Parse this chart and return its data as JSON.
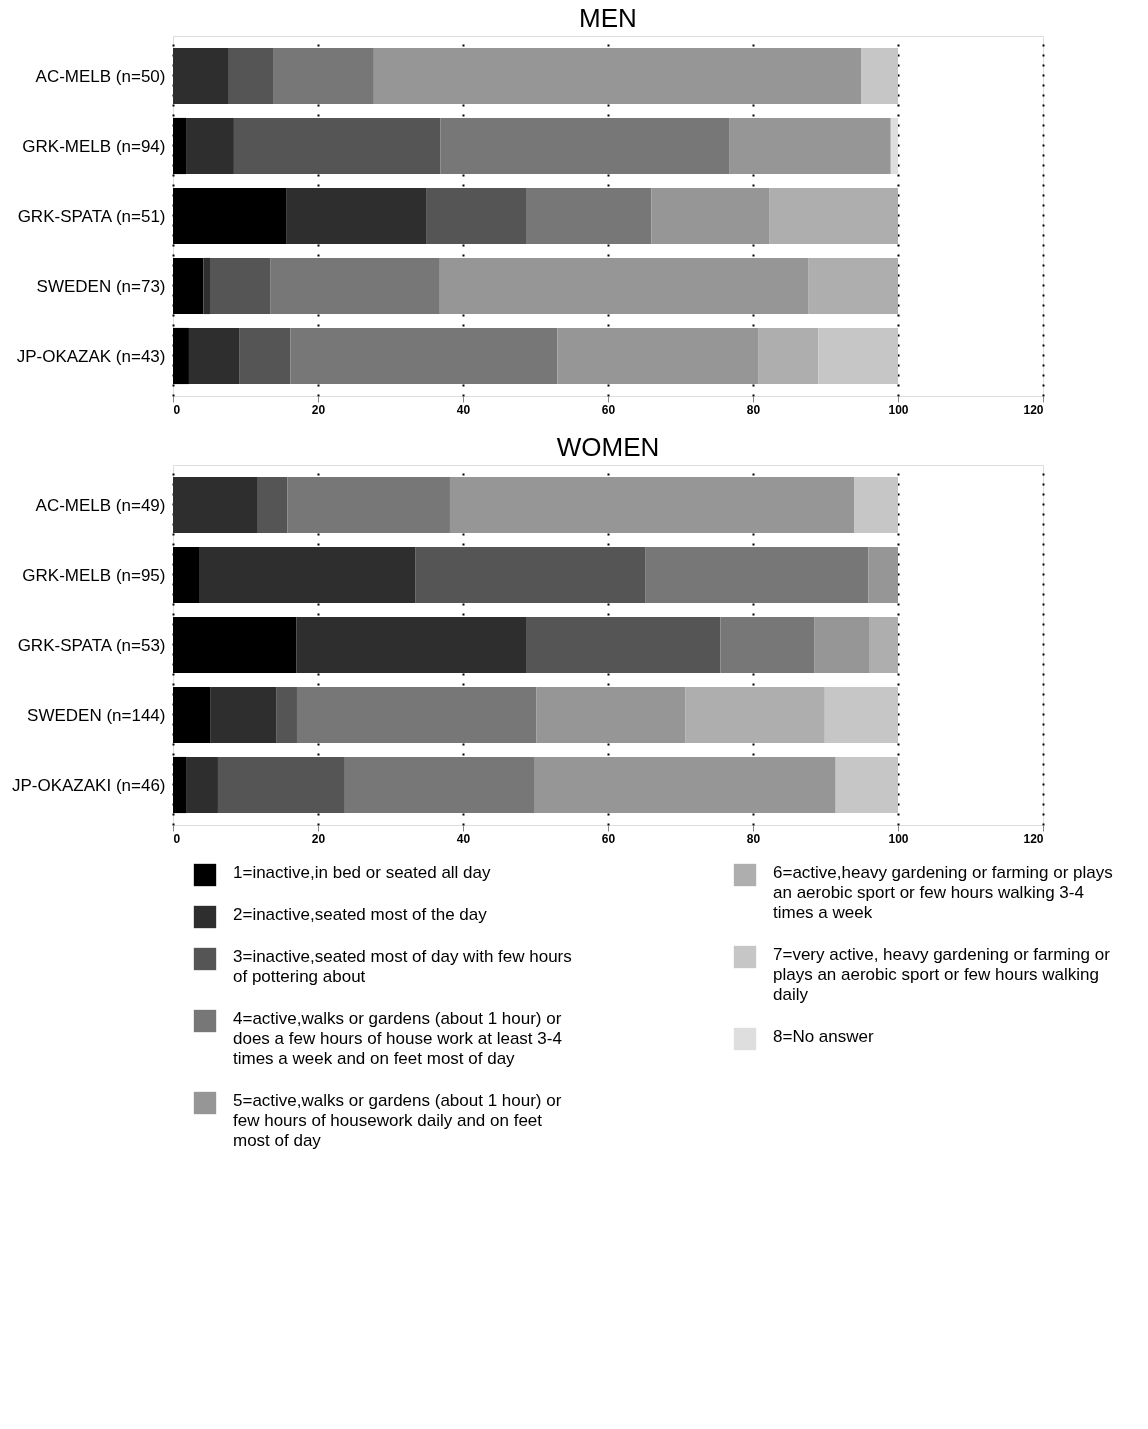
{
  "chart_data": [
    {
      "type": "bar",
      "title": "MEN",
      "orientation": "horizontal",
      "stacked": true,
      "xlim": [
        0,
        120
      ],
      "xticks": [
        0,
        20,
        40,
        60,
        80,
        100,
        120
      ],
      "grid": "x",
      "legend": false,
      "categories": [
        "AC-MELB (n=50)",
        "GRK-MELB (n=94)",
        "GRK-SPATA (n=51)",
        "SWEDEN (n=73)",
        "JP-OKAZAK (n=43)"
      ],
      "series": [
        {
          "color": "#000000",
          "values": [
            0,
            1.8,
            15.6,
            4.2,
            2.2
          ]
        },
        {
          "color": "#2e2e2e",
          "values": [
            7.7,
            6.6,
            19.4,
            0.9,
            7.0
          ]
        },
        {
          "color": "#555555",
          "values": [
            6.2,
            28.5,
            13.8,
            8.3,
            7.0
          ]
        },
        {
          "color": "#777777",
          "values": [
            13.8,
            39.8,
            17.2,
            23.4,
            36.8
          ]
        },
        {
          "color": "#969696",
          "values": [
            67.2,
            22.3,
            16.3,
            50.8,
            27.7
          ]
        },
        {
          "color": "#aeaeae",
          "values": [
            0,
            0,
            17.7,
            12.4,
            8.3
          ]
        },
        {
          "color": "#c6c6c6",
          "values": [
            5.1,
            0,
            0,
            0,
            11.0
          ]
        },
        {
          "color": "#dedede",
          "values": [
            0,
            1.0,
            0,
            0,
            0
          ]
        }
      ]
    },
    {
      "type": "bar",
      "title": "WOMEN",
      "orientation": "horizontal",
      "stacked": true,
      "xlim": [
        0,
        120
      ],
      "xticks": [
        0,
        20,
        40,
        60,
        80,
        100,
        120
      ],
      "grid": "x",
      "legend": "bottom",
      "categories": [
        "AC-MELB (n=49)",
        "GRK-MELB (n=95)",
        "GRK-SPATA (n=53)",
        "SWEDEN (n=144)",
        "JP-OKAZAKI (n=46)"
      ],
      "series": [
        {
          "name": "1=inactive,in bed or seated all day",
          "color": "#000000",
          "values": [
            0,
            3.7,
            17.0,
            5.2,
            1.9
          ]
        },
        {
          "name": "2=inactive,seated most of the day",
          "color": "#2e2e2e",
          "values": [
            11.7,
            29.7,
            31.8,
            9.1,
            4.3
          ]
        },
        {
          "name": "3=inactive,seated most of day with few hours of pottering about",
          "color": "#555555",
          "values": [
            4.1,
            31.8,
            26.7,
            2.8,
            17.5
          ]
        },
        {
          "name": "4=active,walks or gardens (about 1 hour) or does a few hours of house work at least 3-4 times a week and on feet most of day",
          "color": "#777777",
          "values": [
            22.4,
            30.7,
            13.0,
            33.0,
            26.2
          ]
        },
        {
          "name": "5=active,walks or gardens (about 1 hour) or few hours of housework daily and on feet most of day",
          "color": "#969696",
          "values": [
            55.8,
            4.1,
            7.5,
            20.6,
            41.5
          ]
        },
        {
          "name": "6=active,heavy gardening or farming or plays an aerobic sport or few hours walking 3-4 times a week",
          "color": "#aeaeae",
          "values": [
            0,
            0,
            4.0,
            19.2,
            0
          ]
        },
        {
          "name": "7=very active, heavy gardening or farming or plays an aerobic sport or few hours walking daily",
          "color": "#c6c6c6",
          "values": [
            6.0,
            0,
            0,
            10.1,
            8.6
          ]
        },
        {
          "name": "8=No answer",
          "color": "#dedede",
          "values": [
            0,
            0,
            0,
            0,
            0
          ]
        }
      ]
    }
  ]
}
